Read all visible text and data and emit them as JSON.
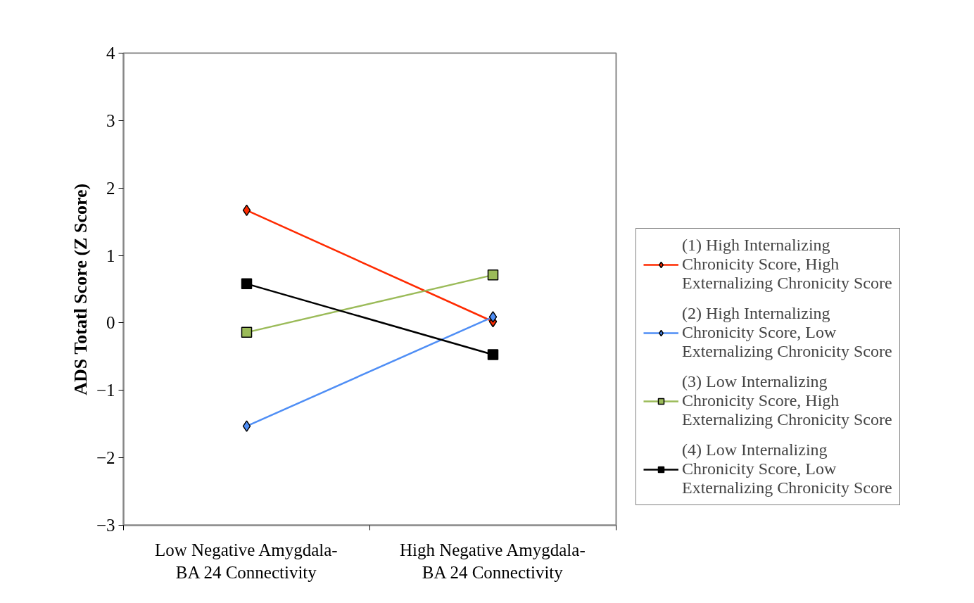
{
  "chart_data": {
    "type": "line",
    "ylabel": "ADS Totatl Score (Z Score)",
    "categories": [
      "Low Negative Amygdala-BA 24 Connectivity",
      "High Negative Amygdala-BA 24 Connectivity"
    ],
    "series": [
      {
        "name": "(1) High Internalizing Chronicity Score, High Externalizing Chronicity Score",
        "color": "#ff2a00",
        "marker": "diamond",
        "values": [
          1.67,
          0.02
        ]
      },
      {
        "name": "(2) High Internalizing Chronicity Score, Low Externalizing Chronicity Score",
        "color": "#4f8ef5",
        "marker": "diamond",
        "values": [
          -1.53,
          0.09
        ]
      },
      {
        "name": "(3) Low Internalizing Chronicity Score, High Externalizing Chronicity Score",
        "color": "#9bbb59",
        "marker": "square",
        "values": [
          -0.14,
          0.71
        ]
      },
      {
        "name": "(4) Low Internalizing Chronicity Score, Low Externalizing Chronicity Score",
        "color": "#000000",
        "marker": "square",
        "values": [
          0.58,
          -0.47
        ]
      }
    ],
    "ylim": [
      -3,
      4
    ],
    "yticks": [
      -3,
      -2,
      -1,
      0,
      1,
      2,
      3,
      4
    ],
    "grid": false,
    "legend": "right",
    "line_style": "solid"
  }
}
